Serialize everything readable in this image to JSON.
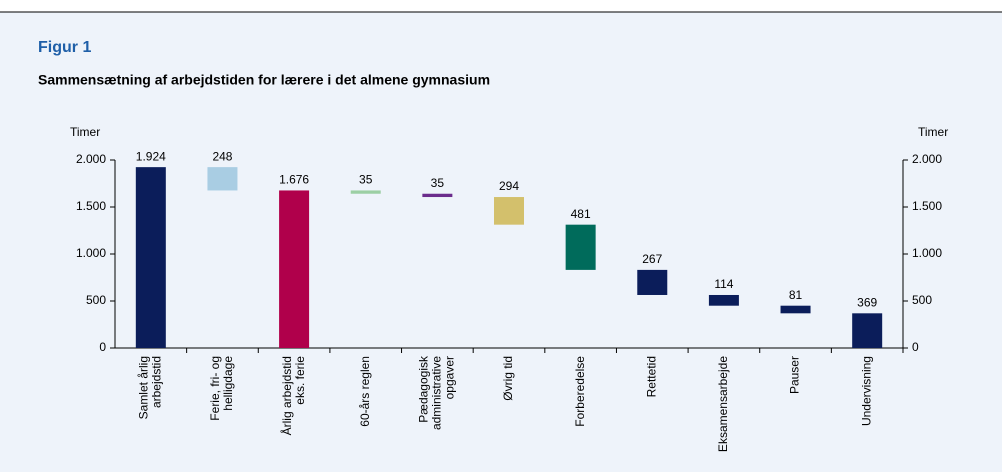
{
  "chart_data": {
    "type": "waterfall",
    "title": "Figur 1",
    "subtitle": "Sammensætning af arbejdstiden for lærere i det almene gymnasium",
    "y_label": "Timer",
    "y2_label": "Timer",
    "categories": [
      [
        "Samlet årlig",
        "arbejdstid"
      ],
      [
        "Ferie, fri- og",
        "helligdage"
      ],
      [
        "Årlig arbejdstid",
        "eks. ferie"
      ],
      [
        "60-års reglen"
      ],
      [
        "Pædagogisk",
        "administrative",
        "opgaver"
      ],
      [
        "Øvrig tid"
      ],
      [
        "Forberedelse"
      ],
      [
        "Rettetid"
      ],
      [
        "Eksamensarbejde"
      ],
      [
        "Pauser"
      ],
      [
        "Undervisning"
      ]
    ],
    "values": [
      1924,
      248,
      1676,
      35,
      35,
      294,
      481,
      267,
      114,
      81,
      369
    ],
    "value_labels": [
      "1.924",
      "248",
      "1.676",
      "35",
      "35",
      "294",
      "481",
      "267",
      "114",
      "81",
      "369"
    ],
    "measure": [
      "total",
      "decrease",
      "total",
      "decrease",
      "decrease",
      "decrease",
      "decrease",
      "decrease",
      "decrease",
      "decrease",
      "total"
    ],
    "colors": [
      "#0b1d5a",
      "#a9cde3",
      "#b0004b",
      "#9ccfa4",
      "#6b2c8c",
      "#d3c06c",
      "#006b5b",
      "#0b1d5a",
      "#0b1d5a",
      "#0b1d5a",
      "#0b1d5a"
    ],
    "ylim": [
      0,
      2000
    ],
    "yticks": [
      0,
      500,
      {
        "value": 1000,
        "label": "1.000"
      },
      {
        "value": 1500,
        "label": "1.500"
      },
      {
        "value": 2000,
        "label": "2.000"
      }
    ],
    "y2lim": [
      0,
      2000
    ],
    "y2ticks": [
      0,
      500,
      {
        "value": 1000,
        "label": "1.000"
      },
      {
        "value": 1500,
        "label": "1.500"
      },
      {
        "value": 2000,
        "label": "2.000"
      }
    ]
  }
}
